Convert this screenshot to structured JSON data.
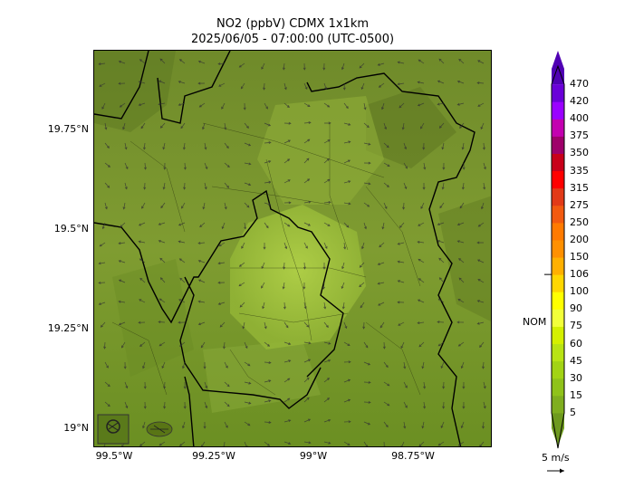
{
  "title": {
    "line1": "NO2 (ppbV) CDMX 1x1km",
    "line2": "2025/06/05 - 07:00:00 (UTC-0500)"
  },
  "axes": {
    "latitude_labels": [
      "19.75°N",
      "19.5°N",
      "19.25°N",
      "19°N"
    ],
    "longitude_labels": [
      "99.5°W",
      "99.25°W",
      "99°W",
      "98.75°W"
    ]
  },
  "colorbar": {
    "levels": [
      "5",
      "15",
      "30",
      "45",
      "60",
      "75",
      "90",
      "100",
      "106",
      "150",
      "200",
      "250",
      "275",
      "315",
      "335",
      "350",
      "375",
      "400",
      "420",
      "470"
    ],
    "colors": [
      "#6e9a1e",
      "#7fae1f",
      "#8fc21a",
      "#a2d314",
      "#b8e314",
      "#d4f000",
      "#f2ff3a",
      "#ffff00",
      "#ffd700",
      "#ffb000",
      "#ff9000",
      "#ff7a00",
      "#f25a10",
      "#e23a18",
      "#ff0000",
      "#c8001a",
      "#9e006a",
      "#c300b0",
      "#9a00ff",
      "#6a00d8",
      "#5000b4"
    ],
    "nom_label": "NOM",
    "nom_value": "106"
  },
  "wind_reference": {
    "label": "5 m/s"
  },
  "map": {
    "base_color": "#7d9a2e",
    "city_fill": "#a9cc3c",
    "boundary_color": "#000000"
  }
}
